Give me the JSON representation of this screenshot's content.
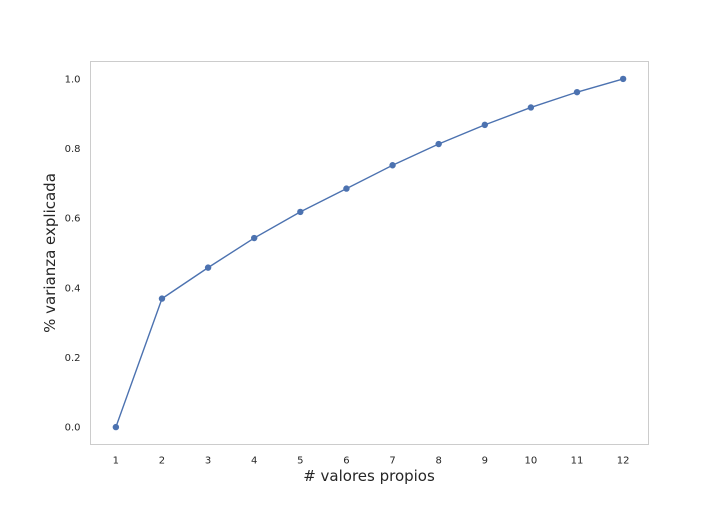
{
  "chart_data": {
    "type": "line",
    "title": "",
    "xlabel": "# valores propios",
    "ylabel": "% varianza explicada",
    "x": [
      1,
      2,
      3,
      4,
      5,
      6,
      7,
      8,
      9,
      10,
      11,
      12
    ],
    "series": [
      {
        "values": [
          0.0,
          0.369,
          0.458,
          0.543,
          0.618,
          0.685,
          0.752,
          0.813,
          0.868,
          0.918,
          0.962,
          1.0
        ],
        "color": "#4c72b0"
      }
    ],
    "xticks": [
      "1",
      "2",
      "3",
      "4",
      "5",
      "6",
      "7",
      "8",
      "9",
      "10",
      "11",
      "12"
    ],
    "yticks": [
      "0.0",
      "0.2",
      "0.4",
      "0.6",
      "0.8",
      "1.0"
    ],
    "xlim": [
      0.45,
      12.55
    ],
    "ylim": [
      -0.05,
      1.05
    ],
    "grid": false,
    "legend": "none"
  }
}
